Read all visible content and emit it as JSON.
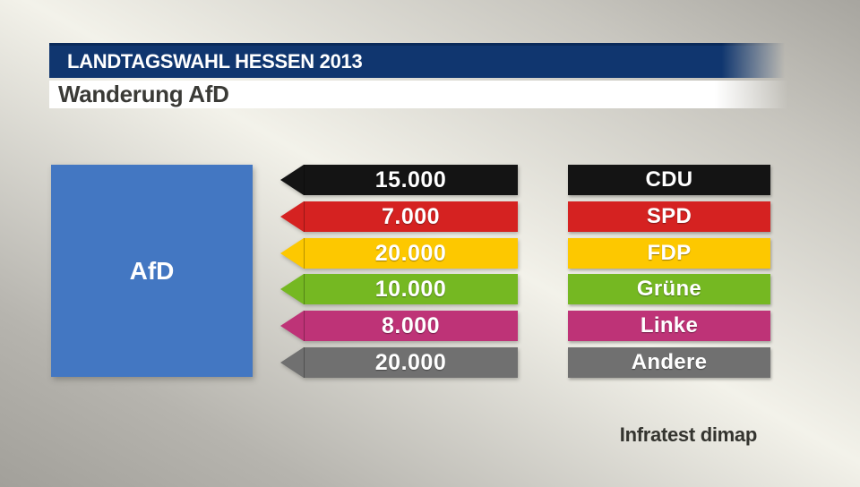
{
  "header": {
    "title": "LANDTAGSWAHL HESSEN 2013",
    "subtitle": "Wanderung AfD",
    "bar_color": "#10366f"
  },
  "target": {
    "label": "AfD",
    "color": "#4377c2"
  },
  "source": {
    "label": "Infratest dimap"
  },
  "chart_data": {
    "type": "bar",
    "title": "Wanderung AfD",
    "subtitle": "LANDTAGSWAHL HESSEN 2013",
    "legend_position": "none",
    "orientation": "horizontal-arrows-left",
    "categories": [
      "CDU",
      "SPD",
      "FDP",
      "Grüne",
      "Linke",
      "Andere"
    ],
    "values": [
      15000,
      7000,
      20000,
      10000,
      8000,
      20000
    ],
    "rows": [
      {
        "party": "CDU",
        "value": 15000,
        "value_label": "15.000",
        "color": "#141414"
      },
      {
        "party": "SPD",
        "value": 7000,
        "value_label": "7.000",
        "color": "#d52221"
      },
      {
        "party": "FDP",
        "value": 20000,
        "value_label": "20.000",
        "color": "#fdc800"
      },
      {
        "party": "Grüne",
        "value": 10000,
        "value_label": "10.000",
        "color": "#75b822"
      },
      {
        "party": "Linke",
        "value": 8000,
        "value_label": "8.000",
        "color": "#be3377"
      },
      {
        "party": "Andere",
        "value": 20000,
        "value_label": "20.000",
        "color": "#707070"
      }
    ]
  }
}
